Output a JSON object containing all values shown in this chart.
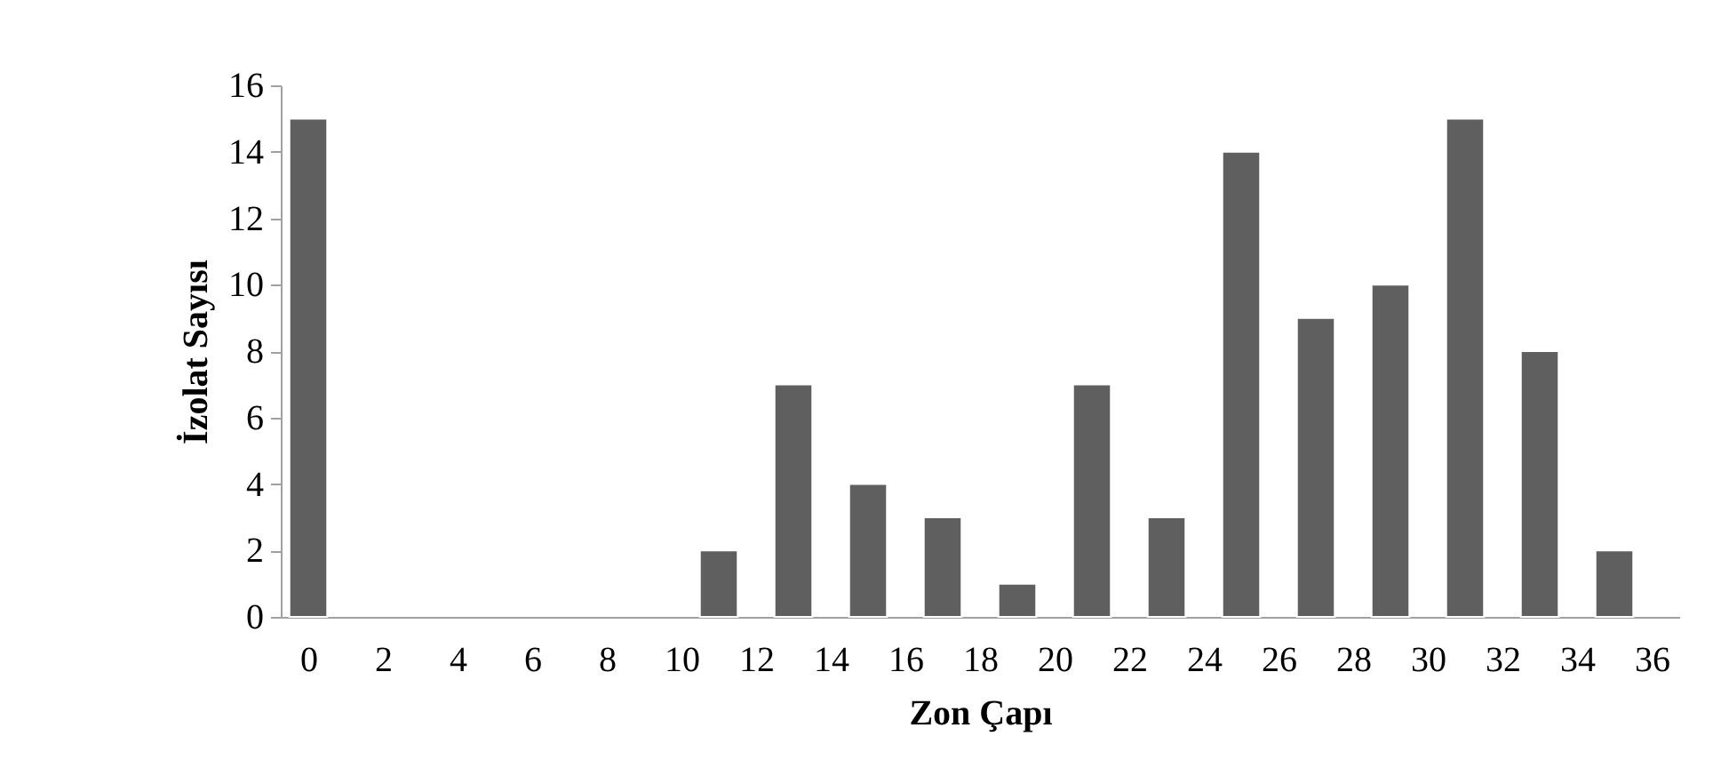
{
  "chart_data": {
    "type": "bar",
    "xlabel": "Zon Çapı",
    "ylabel": "İzolat Sayısı",
    "x": [
      0,
      11,
      13,
      15,
      17,
      19,
      21,
      23,
      25,
      27,
      29,
      31,
      33,
      35
    ],
    "values": [
      15,
      2,
      7,
      4,
      3,
      1,
      7,
      3,
      14,
      9,
      10,
      15,
      8,
      2
    ],
    "color": "#5f5f5f",
    "xlim": [
      -0.5,
      36.5
    ],
    "xticks": [
      0,
      2,
      4,
      6,
      8,
      10,
      12,
      14,
      16,
      18,
      20,
      22,
      24,
      26,
      28,
      30,
      32,
      34,
      36
    ],
    "ylim": [
      0,
      16
    ],
    "yticks": [
      0,
      2,
      4,
      6,
      8,
      10,
      12,
      14,
      16
    ],
    "grid": false
  }
}
